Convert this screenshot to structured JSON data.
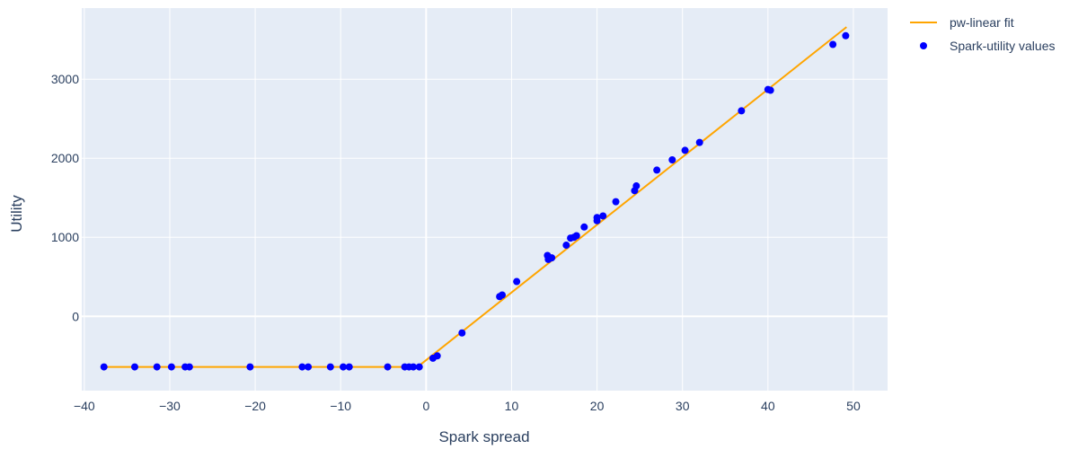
{
  "chart_data": {
    "type": "scatter",
    "xlabel": "Spark spread",
    "ylabel": "Utility",
    "xlim": [
      -40.3,
      54.0
    ],
    "ylim": [
      -940,
      3900
    ],
    "x_ticks": [
      -40,
      -30,
      -20,
      -10,
      0,
      10,
      20,
      30,
      40,
      50
    ],
    "x_tick_labels": [
      "−40",
      "−30",
      "−20",
      "−10",
      "0",
      "10",
      "20",
      "30",
      "40",
      "50"
    ],
    "y_ticks": [
      0,
      1000,
      2000,
      3000
    ],
    "y_tick_labels": [
      "0",
      "1000",
      "2000",
      "3000"
    ],
    "grid": true,
    "legend_position": "top-right",
    "colors": {
      "plot_background": "#e5ecf6",
      "grid": "#ffffff",
      "text": "#2a3f5f",
      "fit_line": "#ffa500",
      "points": "#0000ff"
    },
    "series": [
      {
        "name": "pw-linear fit",
        "mode": "line",
        "x": [
          -37.7,
          -1.0,
          49.2
        ],
        "y": [
          -640,
          -640,
          3660
        ]
      },
      {
        "name": "Spark-utility values",
        "mode": "markers",
        "x": [
          -37.7,
          -34.1,
          -31.5,
          -29.8,
          -28.2,
          -27.7,
          -20.6,
          -14.5,
          -13.8,
          -11.2,
          -9.7,
          -9.0,
          -4.5,
          -2.5,
          -2.0,
          -1.5,
          -0.8,
          0.8,
          1.3,
          4.2,
          8.6,
          8.9,
          10.6,
          14.2,
          14.3,
          14.7,
          16.4,
          16.9,
          17.3,
          17.6,
          18.5,
          20.0,
          20.0,
          20.7,
          22.2,
          24.4,
          24.6,
          27.0,
          28.8,
          30.3,
          32.0,
          36.9,
          40.0,
          40.3,
          47.6,
          49.1
        ],
        "y": [
          -640,
          -640,
          -640,
          -640,
          -640,
          -640,
          -640,
          -640,
          -640,
          -640,
          -640,
          -640,
          -640,
          -640,
          -640,
          -640,
          -640,
          -530,
          -500,
          -210,
          250,
          270,
          440,
          770,
          720,
          740,
          900,
          990,
          1000,
          1020,
          1130,
          1210,
          1250,
          1270,
          1450,
          1590,
          1650,
          1850,
          1980,
          2100,
          2200,
          2600,
          2870,
          2860,
          3440,
          3550
        ]
      }
    ]
  }
}
